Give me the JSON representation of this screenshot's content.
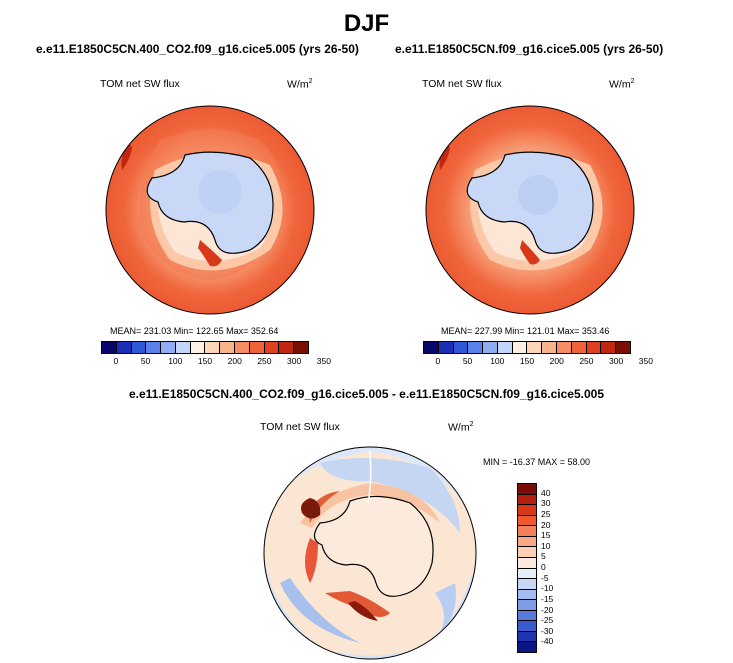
{
  "page": {
    "title": "DJF"
  },
  "panels": [
    {
      "case": "e.e11.E1850C5CN.400_CO2.f09_g16.cice5.005 (yrs 26-50)",
      "variable": "TOM net SW flux",
      "units": "W/m",
      "units_sup": "2",
      "stats": "MEAN= 231.03  Min= 122.65  Max= 352.64"
    },
    {
      "case": "e.e11.E1850C5CN.f09_g16.cice5.005 (yrs 26-50)",
      "variable": "TOM net SW flux",
      "units": "W/m",
      "units_sup": "2",
      "stats": "MEAN= 227.99  Min= 121.01  Max= 353.46"
    }
  ],
  "diff": {
    "title": "e.e11.E1850C5CN.400_CO2.f09_g16.cice5.005 - e.e11.E1850C5CN.f09_g16.cice5.005",
    "variable": "TOM net SW flux",
    "units": "W/m",
    "units_sup": "2",
    "stats": "MIN = -16.37 MAX =  58.00"
  },
  "colorbar_abs": {
    "colors": [
      "#08086b",
      "#1a2fb5",
      "#2f58d8",
      "#5a82e8",
      "#8eadf2",
      "#c3d6fa",
      "#fdf1e4",
      "#fdd6b8",
      "#fbb38c",
      "#f78c63",
      "#f0623a",
      "#e0401f",
      "#c02610",
      "#7a0f05"
    ],
    "labels": [
      "0",
      "50",
      "100",
      "150",
      "200",
      "250",
      "300",
      "350"
    ]
  },
  "colorbar_diff": {
    "colors": [
      "#7a0c05",
      "#b52010",
      "#d83818",
      "#ee5a2e",
      "#f4805a",
      "#f8a886",
      "#fbd0b4",
      "#fcebdc",
      "#e6eefa",
      "#c6d8f4",
      "#a4bdef",
      "#7e9de6",
      "#5a7bdc",
      "#3a5ad0",
      "#1e34b0",
      "#0b1684"
    ],
    "labels": [
      "40",
      "30",
      "25",
      "20",
      "15",
      "10",
      "5",
      "0",
      "-5",
      "-10",
      "-15",
      "-20",
      "-25",
      "-30",
      "-40"
    ]
  }
}
